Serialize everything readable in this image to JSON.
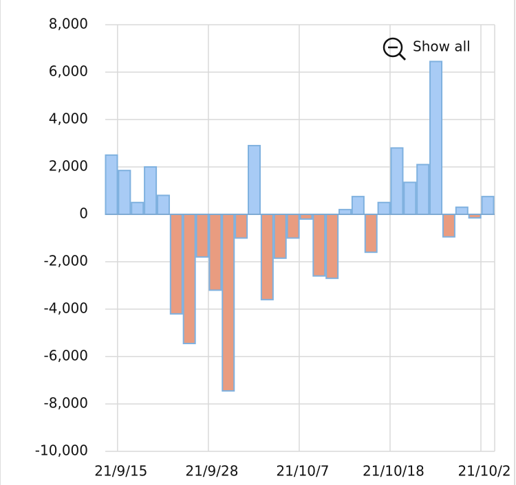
{
  "chart_data": {
    "type": "bar",
    "categories": [
      "21/9/15",
      null,
      null,
      null,
      null,
      null,
      null,
      "21/9/28",
      null,
      null,
      null,
      null,
      null,
      null,
      "21/10/7",
      null,
      null,
      null,
      null,
      null,
      null,
      "21/10/18",
      null,
      null,
      null,
      null,
      null,
      null,
      "21/10/2",
      null
    ],
    "values": [
      2500,
      1850,
      500,
      2000,
      800,
      -4200,
      -5450,
      -1800,
      -3200,
      -7450,
      -1000,
      2900,
      -3600,
      -1850,
      -1000,
      -200,
      -2600,
      -2700,
      200,
      750,
      -1600,
      500,
      2800,
      1350,
      2100,
      6450,
      -950,
      300,
      -150,
      750
    ],
    "positive_color": "#a8cbf5",
    "negative_color": "#e99c80",
    "edge_color": "#7fb1df",
    "ylim": [
      -10000,
      8000
    ],
    "yticks": [
      {
        "value": -10000,
        "label": "-10,000"
      },
      {
        "value": -8000,
        "label": "-8,000"
      },
      {
        "value": -6000,
        "label": "-6,000"
      },
      {
        "value": -4000,
        "label": "-4,000"
      },
      {
        "value": -2000,
        "label": "-2,000"
      },
      0,
      {
        "value": 2000,
        "label": "2,000"
      },
      {
        "value": 4000,
        "label": "4,000"
      },
      {
        "value": 6000,
        "label": "6,000"
      },
      {
        "value": 8000,
        "label": "8,000"
      }
    ],
    "grid": true,
    "button": "Show all"
  }
}
